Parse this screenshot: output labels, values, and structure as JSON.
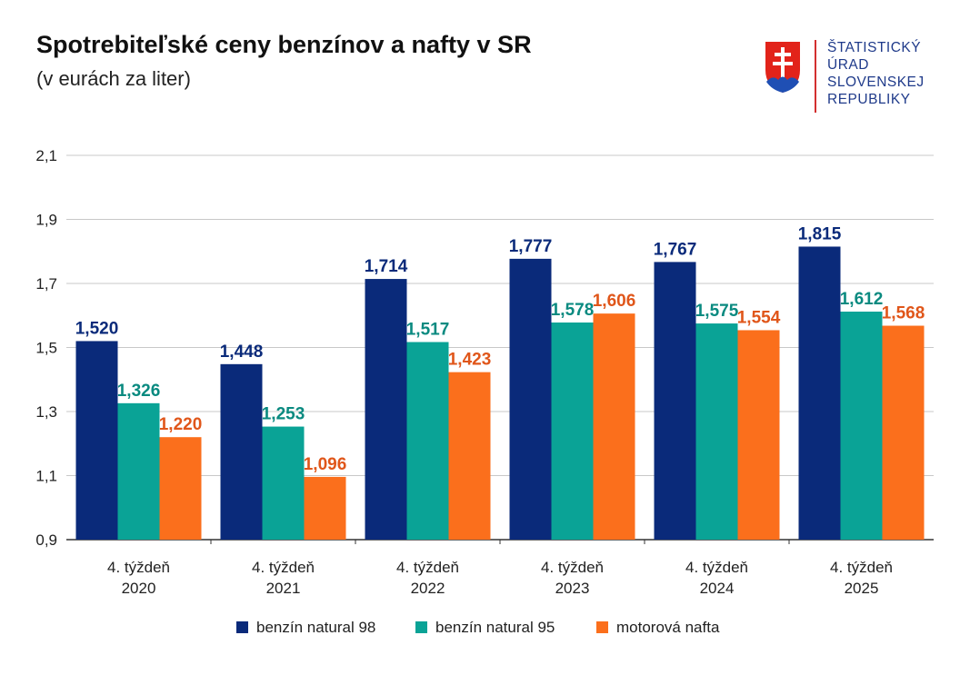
{
  "header": {
    "title": "Spotrebiteľské ceny benzínov a nafty v SR",
    "subtitle": "(v eurách za liter)"
  },
  "logo": {
    "icon": "slovak-coat-of-arms-icon",
    "lines": [
      "ŠTATISTICKÝ",
      "ÚRAD",
      "SLOVENSKEJ",
      "REPUBLIKY"
    ]
  },
  "chart_data": {
    "type": "bar",
    "categories": [
      [
        "4. týždeň",
        "2020"
      ],
      [
        "4. týždeň",
        "2021"
      ],
      [
        "4. týždeň",
        "2022"
      ],
      [
        "4. týždeň",
        "2023"
      ],
      [
        "4. týždeň",
        "2024"
      ],
      [
        "4. týždeň",
        "2025"
      ]
    ],
    "series": [
      {
        "name": "benzín natural 98",
        "color": "#0a2a7a",
        "label_color": "#0a2a7a",
        "values": [
          1.52,
          1.448,
          1.714,
          1.777,
          1.767,
          1.815
        ],
        "labels": [
          "1,520",
          "1,448",
          "1,714",
          "1,777",
          "1,767",
          "1,815"
        ]
      },
      {
        "name": "benzín natural 95",
        "color": "#0aa396",
        "label_color": "#0a8a80",
        "values": [
          1.326,
          1.253,
          1.517,
          1.578,
          1.575,
          1.612
        ],
        "labels": [
          "1,326",
          "1,253",
          "1,517",
          "1,578",
          "1,575",
          "1,612"
        ]
      },
      {
        "name": "motorová nafta",
        "color": "#fb6f1c",
        "label_color": "#e0561a",
        "values": [
          1.22,
          1.096,
          1.423,
          1.606,
          1.554,
          1.568
        ],
        "labels": [
          "1,220",
          "1,096",
          "1,423",
          "1,606",
          "1,554",
          "1,568"
        ]
      }
    ],
    "ylim": [
      0.9,
      2.1
    ],
    "yticks": [
      0.9,
      1.1,
      1.3,
      1.5,
      1.7,
      1.9,
      2.1
    ],
    "ytick_labels": [
      "0,9",
      "1,1",
      "1,3",
      "1,5",
      "1,7",
      "1,9",
      "2,1"
    ],
    "grid": true,
    "legend_position": "bottom"
  }
}
